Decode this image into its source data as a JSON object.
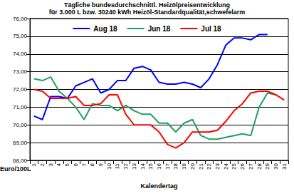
{
  "chart_data": {
    "type": "line",
    "title": "Tägliche bundesdurchschnittl. Heizölpreisentwicklung",
    "subtitle": "für 3.000 L bzw. 30240 kWh Heizöl-Standardqualität,schwefelarm",
    "x_label": "Kalendertag",
    "y_label": "Euro/100L",
    "categories": [
      "1",
      "2",
      "3",
      "4",
      "5",
      "6",
      "7",
      "8",
      "9",
      "10",
      "11",
      "12",
      "13",
      "14",
      "15",
      "16",
      "17",
      "18",
      "19",
      "20",
      "21",
      "22",
      "23",
      "24",
      "25",
      "26",
      "27",
      "28",
      "29",
      "30",
      "31"
    ],
    "series": [
      {
        "name": "Aug 18",
        "color": "#0000ff",
        "values": [
          70.5,
          70.3,
          71.6,
          71.6,
          71.5,
          72.2,
          72.4,
          72.6,
          71.8,
          72.0,
          72.5,
          72.5,
          73.2,
          73.3,
          73.1,
          72.4,
          72.3,
          72.3,
          72.4,
          72.3,
          72.1,
          72.6,
          73.4,
          74.5,
          74.9,
          74.9,
          74.8,
          75.1,
          75.1,
          null,
          null
        ]
      },
      {
        "name": "Jun 18",
        "color": "#20a060",
        "values": [
          72.6,
          72.5,
          72.7,
          71.9,
          71.5,
          71.0,
          70.3,
          71.2,
          71.1,
          71.1,
          70.8,
          71.1,
          70.8,
          70.6,
          70.6,
          70.1,
          70.1,
          69.6,
          70.1,
          70.3,
          69.4,
          69.2,
          69.2,
          69.3,
          69.4,
          69.5,
          69.4,
          71.0,
          71.8,
          71.7,
          null
        ]
      },
      {
        "name": "Jul 18",
        "color": "#ff0000",
        "values": [
          72.0,
          71.9,
          71.5,
          71.5,
          71.5,
          71.6,
          71.1,
          71.1,
          71.2,
          71.7,
          71.7,
          70.6,
          70.0,
          70.0,
          70.0,
          69.6,
          68.9,
          68.7,
          69.0,
          69.6,
          69.6,
          69.6,
          69.7,
          70.2,
          70.8,
          71.2,
          71.8,
          71.9,
          71.9,
          71.7,
          71.4
        ]
      }
    ],
    "ylim": [
      68,
      76
    ],
    "yticks": [
      {
        "value": 68,
        "label": "68,00"
      },
      {
        "value": 69,
        "label": "69,00"
      },
      {
        "value": 70,
        "label": "70,00"
      },
      {
        "value": 71,
        "label": "71,00"
      },
      {
        "value": 72,
        "label": "72,00"
      },
      {
        "value": 73,
        "label": "73,00"
      },
      {
        "value": 74,
        "label": "74,00"
      },
      {
        "value": 75,
        "label": "75,00"
      },
      {
        "value": 76,
        "label": "76,00"
      }
    ],
    "grid": true,
    "legend": "top"
  }
}
